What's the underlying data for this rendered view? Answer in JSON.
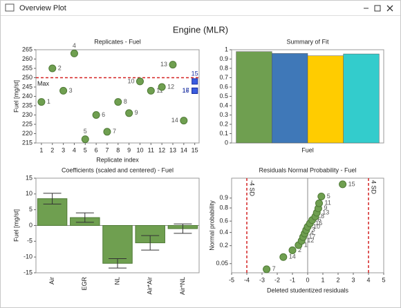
{
  "window_title": "Overview Plot",
  "title": "Engine (MLR)",
  "chart_data": [
    {
      "type": "scatter",
      "title": "Replicates - Fuel",
      "xlabel": "Replicate index",
      "ylabel": "Fuel [mg/st]",
      "xlim": [
        0.5,
        15.4
      ],
      "xticks": [
        1,
        2,
        3,
        4,
        5,
        6,
        7,
        8,
        9,
        10,
        11,
        12,
        13,
        14,
        15
      ],
      "ylim": [
        215,
        265
      ],
      "yticks": [
        215,
        220,
        225,
        230,
        235,
        240,
        245,
        250,
        255,
        260,
        265
      ],
      "series": [
        {
          "color": "#6f9f50",
          "marker": "circle",
          "x": [
            1,
            2,
            3,
            4,
            5,
            6,
            7,
            8,
            9,
            10,
            11,
            12,
            13,
            14
          ],
          "values": [
            237,
            255,
            243,
            263,
            217,
            230,
            221,
            237,
            231,
            248,
            243,
            245,
            257,
            227
          ],
          "point_labels": [
            "1",
            "2",
            "3",
            "4",
            "5",
            "6",
            "7",
            "8",
            "9",
            "10",
            "11",
            "12",
            "13",
            "14"
          ]
        },
        {
          "color": "#3a5de0",
          "marker": "square",
          "x": [
            15,
            15,
            15
          ],
          "values": [
            248,
            243,
            243
          ],
          "point_labels": [
            "15",
            "16",
            "17"
          ]
        }
      ],
      "reference_line": {
        "value": 250,
        "label": "Max",
        "color": "#d42020"
      }
    },
    {
      "type": "bar",
      "title": "Summary of Fit",
      "categories": [
        "Fuel"
      ],
      "ylim": [
        0,
        1
      ],
      "yticks": [
        0,
        0.1,
        0.2,
        0.3,
        0.4,
        0.5,
        0.6,
        0.7,
        0.8,
        0.9,
        1
      ],
      "series": [
        {
          "color": "#6f9f50",
          "values": [
            0.98
          ]
        },
        {
          "color": "#3f78b8",
          "values": [
            0.96
          ]
        },
        {
          "color": "#ffcc00",
          "values": [
            0.935
          ]
        },
        {
          "color": "#33cccc",
          "values": [
            0.955
          ]
        }
      ]
    },
    {
      "type": "errorbar",
      "title": "Coefficients (scaled and centered) - Fuel",
      "ylabel": "Fuel [mg/st]",
      "categories": [
        "Air",
        "EGR",
        "NL",
        "Air*Air",
        "Air*NL"
      ],
      "values": [
        8.5,
        2.5,
        -12,
        -5.5,
        -1
      ],
      "errors": [
        1.7,
        1.5,
        1.5,
        2.3,
        1.5
      ],
      "color": "#6f9f50",
      "ylim": [
        -15,
        15
      ],
      "yticks": [
        -15,
        -10,
        -5,
        0,
        5,
        10,
        15
      ]
    },
    {
      "type": "probability",
      "title": "Residuals Normal Probability - Fuel",
      "xlabel": "Deleted studentized residuals",
      "ylabel": "Normal probability",
      "xlim": [
        -5,
        5
      ],
      "xticks": [
        -5,
        -4,
        -3,
        -2,
        -1,
        0,
        1,
        2,
        3,
        4,
        5
      ],
      "yscale": "probit",
      "ylim": [
        0.02,
        0.985
      ],
      "yticks": [
        0.05,
        0.2,
        0.4,
        0.6,
        0.8,
        0.9
      ],
      "series": [
        {
          "color": "#6f9f50",
          "marker": "circle",
          "x": [
            -2.7,
            -1.6,
            -1.0,
            -0.6,
            -0.4,
            -0.3,
            -0.2,
            -0.1,
            0.0,
            0.15,
            0.3,
            0.5,
            0.6,
            0.7,
            0.75,
            0.9,
            2.3
          ],
          "values": [
            0.029,
            0.088,
            0.147,
            0.206,
            0.265,
            0.324,
            0.382,
            0.441,
            0.5,
            0.559,
            0.618,
            0.676,
            0.735,
            0.794,
            0.853,
            0.912,
            0.971
          ],
          "point_labels": [
            "7",
            "14",
            "2",
            "1",
            "12",
            "17",
            "4",
            "3",
            "10",
            "16",
            "6",
            "8",
            "13",
            "9",
            "11",
            "5",
            "15"
          ]
        }
      ],
      "reference_lines": [
        {
          "value": -4,
          "label": "-4 SD",
          "color": "#d42020"
        },
        {
          "value": 4,
          "label": "4 SD",
          "color": "#d42020"
        }
      ]
    }
  ]
}
